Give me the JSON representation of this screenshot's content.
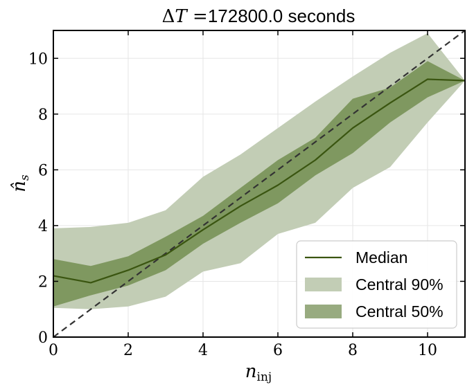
{
  "chart_data": {
    "type": "area",
    "title": "ΔT =172800.0 seconds",
    "xlabel": "n_inj",
    "ylabel": "n̂_s",
    "xlim": [
      0,
      11
    ],
    "ylim": [
      0,
      11
    ],
    "x_ticks": [
      0,
      2,
      4,
      6,
      8,
      10
    ],
    "y_ticks": [
      0,
      2,
      4,
      6,
      8,
      10
    ],
    "grid": true,
    "legend_position": "lower-right",
    "x": [
      0,
      1,
      2,
      3,
      4,
      5,
      6,
      7,
      8,
      9,
      10,
      11
    ],
    "series": [
      {
        "name": "Median",
        "kind": "line",
        "color": "#3a5510",
        "values": [
          2.2,
          1.95,
          2.4,
          2.95,
          3.85,
          4.7,
          5.45,
          6.35,
          7.5,
          8.4,
          9.25,
          9.2
        ]
      },
      {
        "name": "Central 90%",
        "kind": "band",
        "color": "#c2cdb5",
        "lower": [
          1.05,
          1.0,
          1.1,
          1.45,
          2.35,
          2.65,
          3.7,
          4.1,
          5.35,
          6.1,
          7.7,
          9.2
        ],
        "upper": [
          3.9,
          3.95,
          4.1,
          4.55,
          5.75,
          6.55,
          7.5,
          8.45,
          9.35,
          10.2,
          10.9,
          9.2
        ]
      },
      {
        "name": "Central 50%",
        "kind": "band",
        "color": "#7f9860",
        "lower": [
          1.1,
          1.5,
          1.85,
          2.4,
          3.35,
          4.1,
          4.8,
          5.8,
          6.6,
          7.7,
          8.6,
          9.2
        ],
        "upper": [
          2.8,
          2.55,
          2.9,
          3.6,
          4.35,
          5.35,
          6.35,
          7.15,
          8.55,
          8.95,
          9.9,
          9.2
        ]
      }
    ],
    "reference_line": {
      "from": [
        0,
        0
      ],
      "to": [
        11,
        11
      ],
      "style": "dashed",
      "color": "#333333"
    },
    "legend": {
      "entries": [
        {
          "label": "Median",
          "kind": "line",
          "color": "#3a5510"
        },
        {
          "label": "Central 90%",
          "kind": "patch",
          "color": "#c2cdb5"
        },
        {
          "label": "Central 50%",
          "kind": "patch",
          "color": "#98ab80"
        }
      ]
    }
  }
}
